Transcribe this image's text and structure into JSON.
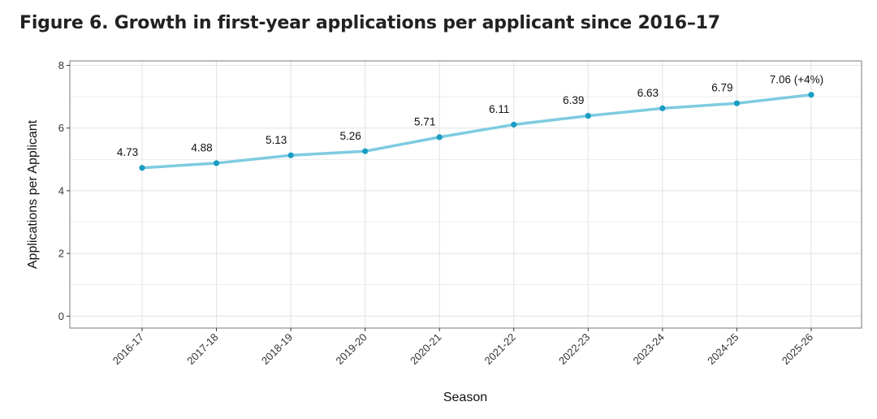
{
  "figure_title": "Figure 6. Growth in first-year applications per applicant since 2016–17",
  "colors": {
    "line": "#7ecbe0",
    "point": "#1a9dc3",
    "grid": "#e4e4e4",
    "panel_border": "#7a7a7a"
  },
  "chart_data": {
    "type": "line",
    "categories": [
      "2016-17",
      "2017-18",
      "2018-19",
      "2019-20",
      "2020-21",
      "2021-22",
      "2022-23",
      "2023-24",
      "2024-25",
      "2025-26"
    ],
    "values": [
      4.73,
      4.88,
      5.13,
      5.26,
      5.71,
      6.11,
      6.39,
      6.63,
      6.79,
      7.06
    ],
    "data_labels": [
      "4.73",
      "4.88",
      "5.13",
      "5.26",
      "5.71",
      "6.11",
      "6.39",
      "6.63",
      "6.79",
      "7.06 (+4%)"
    ],
    "xlabel": "Season",
    "ylabel": "Applications per Applicant",
    "ylim": [
      0,
      8
    ],
    "yticks": [
      "0",
      "2",
      "4",
      "6",
      "8"
    ],
    "grid": true,
    "legend": "none"
  }
}
